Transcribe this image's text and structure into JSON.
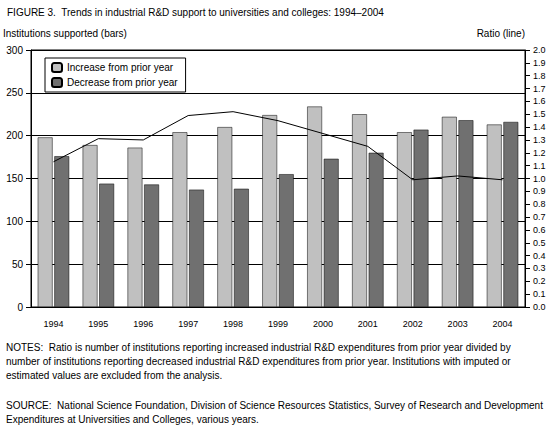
{
  "chart_data": {
    "type": "bar",
    "title": "FIGURE 3.  Trends in industrial R&D support to universities and colleges: 1994–2004",
    "ylabel": "Institutions supported (bars)",
    "y2label": "Ratio (line)",
    "categories": [
      "1994",
      "1995",
      "1996",
      "1997",
      "1998",
      "1999",
      "2000",
      "2001",
      "2002",
      "2003",
      "2004"
    ],
    "series": [
      {
        "name": "Increase from prior year",
        "type": "bar",
        "color": "#c0c0c0",
        "values": [
          198,
          189,
          186,
          204,
          210,
          224,
          234,
          225,
          204,
          222,
          213
        ]
      },
      {
        "name": "Decrease from prior year",
        "type": "bar",
        "color": "#707070",
        "values": [
          176,
          144,
          143,
          137,
          138,
          155,
          173,
          180,
          207,
          218,
          216
        ]
      },
      {
        "type": "line",
        "axis": "y2",
        "color": "#000000",
        "values": [
          1.13,
          1.31,
          1.3,
          1.49,
          1.52,
          1.45,
          1.35,
          1.25,
          0.99,
          1.02,
          0.99
        ]
      }
    ],
    "ylim": [
      0,
      300
    ],
    "yticks": [
      0,
      50,
      100,
      150,
      200,
      250,
      300
    ],
    "y2lim": [
      0,
      2
    ],
    "y2ticks": [
      {
        "value": 0,
        "label": "0.0"
      },
      0.1,
      0.2,
      0.3,
      0.4,
      0.5,
      0.6,
      0.7,
      0.8,
      0.9,
      {
        "value": 1,
        "label": "1.0"
      },
      1.1,
      1.2,
      1.3,
      1.4,
      1.5,
      1.6,
      1.7,
      1.8,
      1.9,
      {
        "value": 2,
        "label": "2.0"
      }
    ],
    "grid": true,
    "legend": "upper left",
    "annotations": [
      "NOTES:  Ratio is number of institutions reporting increased industrial R&D expenditures from prior year divided by number of institutions reporting decreased industrial R&D expenditures from prior year. Institutions with imputed or estimated values are excluded from the analysis.",
      "SOURCE:  National Science Foundation, Division of Science Resources Statistics, Survey of Research and Development Expenditures at Universities and Colleges, various years."
    ]
  }
}
